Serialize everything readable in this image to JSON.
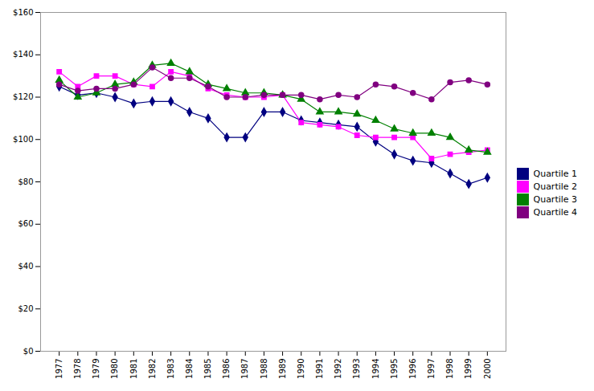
{
  "chart_data": {
    "type": "line",
    "x": [
      1977,
      1978,
      1979,
      1980,
      1981,
      1982,
      1983,
      1984,
      1985,
      1986,
      1987,
      1988,
      1989,
      1990,
      1991,
      1992,
      1993,
      1994,
      1995,
      1996,
      1997,
      1998,
      1999,
      2000
    ],
    "series": [
      {
        "name": "Quartile 1",
        "color": "#000080",
        "marker": "diamond",
        "values": [
          125,
          121,
          122,
          120,
          117,
          118,
          118,
          113,
          110,
          101,
          101,
          113,
          113,
          109,
          108,
          107,
          106,
          99,
          93,
          90,
          89,
          84,
          79,
          82
        ]
      },
      {
        "name": "Quartile 2",
        "color": "#FF00FF",
        "marker": "square",
        "values": [
          132,
          125,
          130,
          130,
          126,
          125,
          132,
          130,
          124,
          121,
          120,
          120,
          121,
          108,
          107,
          106,
          102,
          101,
          101,
          101,
          91,
          93,
          94,
          95
        ]
      },
      {
        "name": "Quartile 3",
        "color": "#008000",
        "marker": "triangle",
        "values": [
          128,
          120,
          122,
          126,
          127,
          135,
          136,
          132,
          126,
          124,
          122,
          122,
          121,
          119,
          113,
          113,
          112,
          109,
          105,
          103,
          103,
          101,
          95,
          94
        ]
      },
      {
        "name": "Quartile 4",
        "color": "#800080",
        "marker": "circle",
        "values": [
          126,
          123,
          124,
          124,
          126,
          134,
          129,
          129,
          125,
          120,
          120,
          121,
          121,
          121,
          119,
          121,
          120,
          126,
          125,
          122,
          119,
          127,
          128,
          126
        ]
      }
    ],
    "xlim": [
      1976,
      2001
    ],
    "xticks": [
      1977,
      1978,
      1979,
      1980,
      1981,
      1982,
      1983,
      1984,
      1985,
      1986,
      1987,
      1988,
      1989,
      1990,
      1991,
      1992,
      1993,
      1994,
      1995,
      1996,
      1997,
      1998,
      1999,
      2000
    ],
    "ylim": [
      0,
      160
    ],
    "yticks": [
      {
        "value": 0,
        "label": "$0"
      },
      {
        "value": 20,
        "label": "$20"
      },
      {
        "value": 40,
        "label": "$40"
      },
      {
        "value": 60,
        "label": "$60"
      },
      {
        "value": 80,
        "label": "$80"
      },
      {
        "value": 100,
        "label": "$100"
      },
      {
        "value": 120,
        "label": "$120"
      },
      {
        "value": 140,
        "label": "$140"
      },
      {
        "value": 160,
        "label": "$160"
      }
    ],
    "grid": false,
    "legend": "right"
  }
}
